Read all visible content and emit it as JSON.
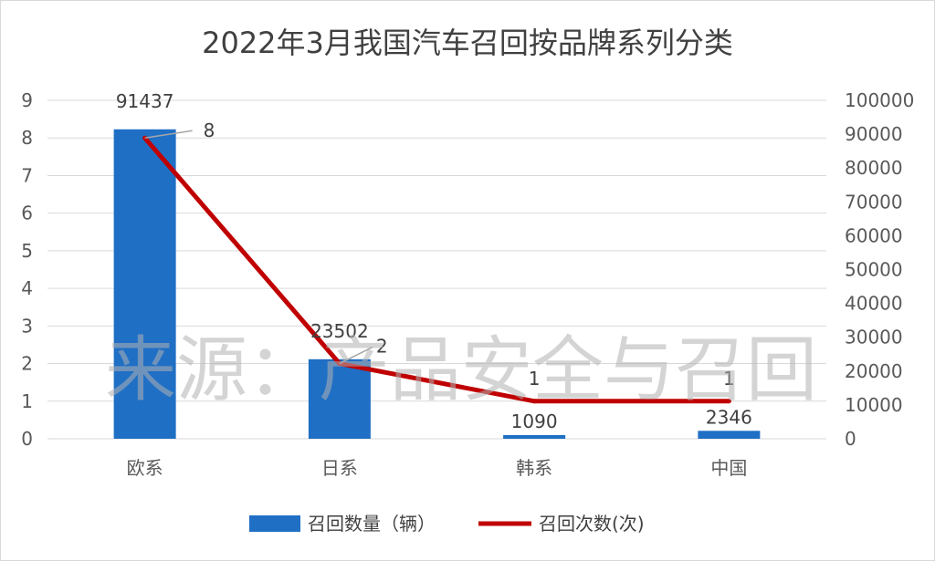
{
  "chart_data": {
    "type": "bar",
    "title": "2022年3月我国汽车召回按品牌系列分类",
    "categories": [
      "欧系",
      "日系",
      "韩系",
      "中国"
    ],
    "series": [
      {
        "name": "召回数量（辆）",
        "type": "bar",
        "axis": "right",
        "values": [
          91437,
          23502,
          1090,
          2346
        ],
        "color": "#1f6fc5"
      },
      {
        "name": "召回次数(次)",
        "type": "line",
        "axis": "left",
        "values": [
          8,
          2,
          1,
          1
        ],
        "color": "#c00000"
      }
    ],
    "bar_data_labels": [
      "91437",
      "23502",
      "1090",
      "2346"
    ],
    "line_data_labels": [
      "8",
      "2",
      "1",
      "1"
    ],
    "left_axis": {
      "min": 0,
      "max": 9,
      "step": 1
    },
    "right_axis": {
      "min": 0,
      "max": 100000,
      "step": 10000
    },
    "grid": true,
    "legend_position": "bottom"
  },
  "watermark": "来源：产品安全与召回"
}
